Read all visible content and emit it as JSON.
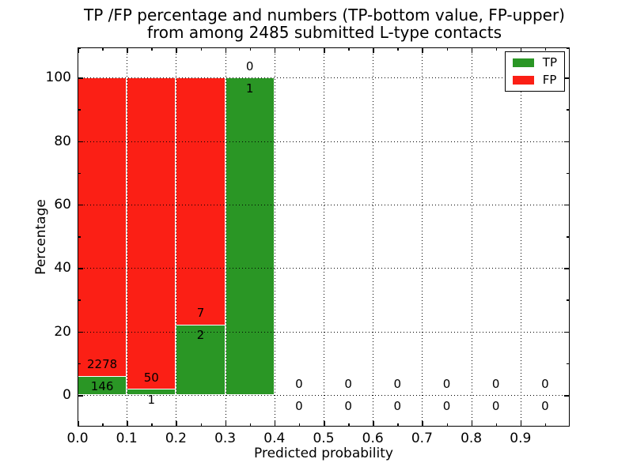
{
  "chart_data": {
    "type": "bar",
    "stacked": true,
    "units": "percent",
    "title_line1": "TP /FP percentage and numbers (TP-bottom value, FP-upper)",
    "title_line2": "from among 2485 submitted L-type contacts",
    "total_contacts": 2485,
    "xlabel": "Predicted probability",
    "ylabel": "Percentage",
    "xlim": [
      0.0,
      1.0
    ],
    "ylim": [
      -10,
      110
    ],
    "xtick_values": [
      0.0,
      0.1,
      0.2,
      0.3,
      0.4,
      0.5,
      0.6,
      0.7,
      0.8,
      0.9
    ],
    "xtick_labels": [
      "0.0",
      "0.1",
      "0.2",
      "0.3",
      "0.4",
      "0.5",
      "0.6",
      "0.7",
      "0.8",
      "0.9"
    ],
    "ytick_values": [
      0,
      20,
      40,
      60,
      80,
      100
    ],
    "ytick_labels": [
      "0",
      "20",
      "40",
      "60",
      "80",
      "100"
    ],
    "grid": "dotted",
    "colors": {
      "tp": "#2A9625",
      "fp": "#FB1F15"
    },
    "legend": {
      "position": "upper right",
      "entries": [
        {
          "label": "TP",
          "color": "#2A9625"
        },
        {
          "label": "FP",
          "color": "#FB1F15"
        }
      ]
    },
    "bins": [
      {
        "start": 0.0,
        "end": 0.1,
        "tp": 146,
        "fp": 2278,
        "tp_pct": 6.0
      },
      {
        "start": 0.1,
        "end": 0.2,
        "tp": 1,
        "fp": 50,
        "tp_pct": 2.0
      },
      {
        "start": 0.2,
        "end": 0.3,
        "tp": 2,
        "fp": 7,
        "tp_pct": 22.2
      },
      {
        "start": 0.3,
        "end": 0.4,
        "tp": 1,
        "fp": 0,
        "tp_pct": 100.0
      },
      {
        "start": 0.4,
        "end": 0.5,
        "tp": 0,
        "fp": 0,
        "tp_pct": 0
      },
      {
        "start": 0.5,
        "end": 0.6,
        "tp": 0,
        "fp": 0,
        "tp_pct": 0
      },
      {
        "start": 0.6,
        "end": 0.7,
        "tp": 0,
        "fp": 0,
        "tp_pct": 0
      },
      {
        "start": 0.7,
        "end": 0.8,
        "tp": 0,
        "fp": 0,
        "tp_pct": 0
      },
      {
        "start": 0.8,
        "end": 0.9,
        "tp": 0,
        "fp": 0,
        "tp_pct": 0
      },
      {
        "start": 0.9,
        "end": 1.0,
        "tp": 0,
        "fp": 0,
        "tp_pct": 0
      }
    ]
  }
}
